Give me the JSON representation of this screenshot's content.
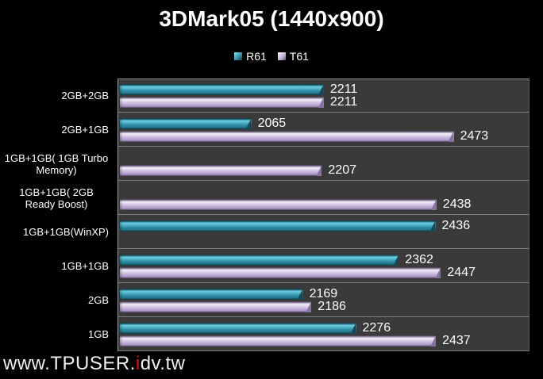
{
  "title": "3DMark05 (1440x900)",
  "legend": [
    {
      "label": "R61",
      "color": "#2f8da5"
    },
    {
      "label": "T61",
      "color": "#c2b0d7"
    }
  ],
  "watermark": {
    "prefix": "www.TPUSER.",
    "highlight": "i",
    "suffix": "dv.tw",
    "highlight_color": "#e31010"
  },
  "colors": {
    "background": "#000000",
    "plot_background": "#3a3a3a",
    "separator": "#7d7d7d",
    "axis_line": "#9b9b9b",
    "r61_bar": "#2f8da5",
    "t61_bar": "#c2b0d7",
    "text": "#ffffff"
  },
  "chart_data": {
    "type": "bar",
    "orientation": "horizontal",
    "title": "3DMark05 (1440x900)",
    "categories": [
      "2GB+2GB",
      "2GB+1GB",
      "1GB+1GB( 1GB Turbo Memory)",
      "1GB+1GB( 2GB Ready Boost)",
      "1GB+1GB(WinXP)",
      "1GB+1GB",
      "2GB",
      "1GB"
    ],
    "series": [
      {
        "name": "R61",
        "values": [
          2211,
          2065,
          null,
          null,
          2436,
          2362,
          2169,
          2276
        ]
      },
      {
        "name": "T61",
        "values": [
          2211,
          2473,
          2207,
          2438,
          null,
          2447,
          2186,
          2437
        ]
      }
    ],
    "xlim": [
      1800,
      2600
    ],
    "xlabel": "",
    "ylabel": "",
    "grid": "category separators only, no value gridlines",
    "legend_position": "top",
    "data_labels": true
  }
}
